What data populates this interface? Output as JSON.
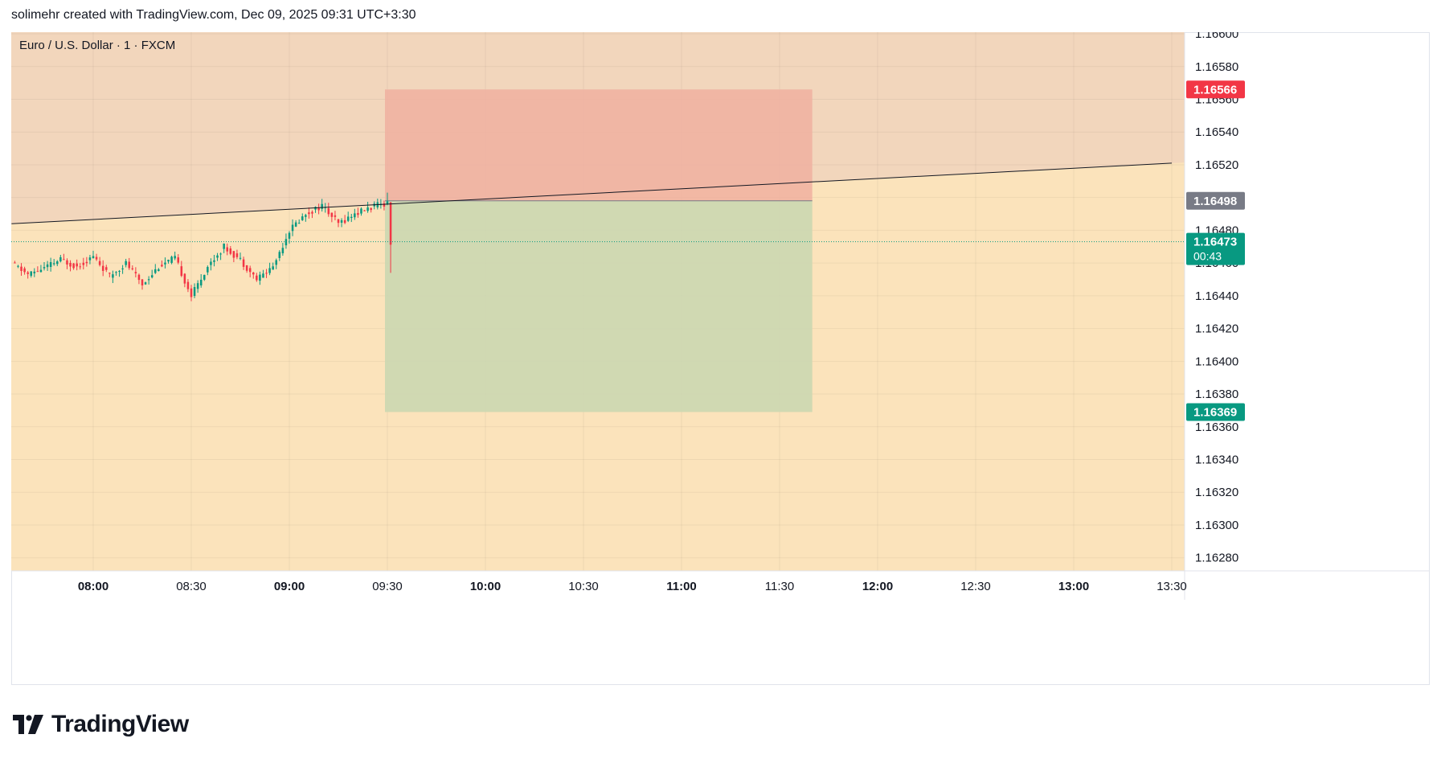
{
  "header": {
    "attribution": "solimehr created with TradingView.com, Dec 09, 2025 09:31 UTC+3:30"
  },
  "symbol": {
    "label": "Euro / U.S. Dollar · 1 · FXCM"
  },
  "branding": {
    "logo_text": "TradingView"
  },
  "colors": {
    "background_upper": "#f2d6bc",
    "background_lower": "#fbe3bb",
    "stop_zone": "#f0b0a0",
    "target_zone": "#cbd7b1",
    "candle_up": "#089981",
    "candle_down": "#f23645",
    "stop_badge": "#f23645",
    "entry_badge": "#787b86",
    "current_badge": "#089981",
    "target_badge": "#089981"
  },
  "chart_data": {
    "type": "candlestick",
    "title": "Euro / U.S. Dollar · 1 · FXCM",
    "x_tick_labels": [
      "08:00",
      "08:30",
      "09:00",
      "09:30",
      "10:00",
      "10:30",
      "11:00",
      "11:30",
      "12:00",
      "12:30",
      "13:00",
      "13:30"
    ],
    "y_tick_labels": [
      "1.16600",
      "1.16580",
      "1.16560",
      "1.16540",
      "1.16520",
      "1.16500",
      "1.16480",
      "1.16460",
      "1.16440",
      "1.16420",
      "1.16400",
      "1.16380",
      "1.16360",
      "1.16340",
      "1.16320",
      "1.16300",
      "1.16280"
    ],
    "ylim": [
      1.16272,
      1.16601
    ],
    "grid": true,
    "price_series": [
      [
        "07:35",
        1.1646
      ],
      [
        "07:40",
        1.16453
      ],
      [
        "07:45",
        1.16457
      ],
      [
        "07:50",
        1.16462
      ],
      [
        "07:55",
        1.16458
      ],
      [
        "08:00",
        1.16464
      ],
      [
        "08:05",
        1.16452
      ],
      [
        "08:10",
        1.1646
      ],
      [
        "08:15",
        1.16447
      ],
      [
        "08:20",
        1.16458
      ],
      [
        "08:25",
        1.16463
      ],
      [
        "08:30",
        1.1644
      ],
      [
        "08:35",
        1.16458
      ],
      [
        "08:40",
        1.1647
      ],
      [
        "08:45",
        1.16462
      ],
      [
        "08:50",
        1.1645
      ],
      [
        "08:55",
        1.16458
      ],
      [
        "09:00",
        1.1648
      ],
      [
        "09:05",
        1.1649
      ],
      [
        "09:10",
        1.16495
      ],
      [
        "09:15",
        1.16484
      ],
      [
        "09:20",
        1.1649
      ],
      [
        "09:25",
        1.16494
      ],
      [
        "09:30",
        1.16497
      ],
      [
        "09:31",
        1.16473
      ]
    ],
    "trendline": {
      "start": {
        "time": "07:35",
        "price": 1.16484
      },
      "end": {
        "time": "13:30",
        "price": 1.16521
      }
    },
    "position": {
      "direction": "short",
      "entry": 1.16498,
      "stop": 1.16566,
      "target": 1.16369,
      "start_time": "09:30",
      "end_time": "11:40"
    },
    "price_labels": {
      "stop": "1.16566",
      "entry": "1.16498",
      "current": "1.16473",
      "countdown": "00:43",
      "target": "1.16369"
    }
  }
}
